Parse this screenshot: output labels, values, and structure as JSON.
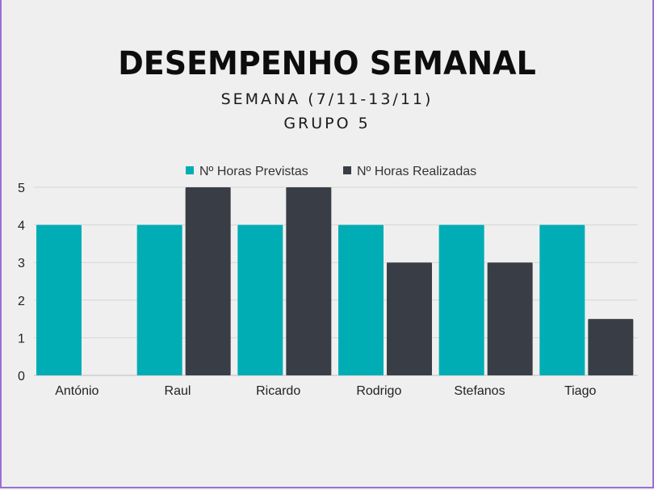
{
  "chart_data": {
    "type": "bar",
    "title": "DESEMPENHO SEMANAL",
    "subtitle_lines": [
      "SEMANA (7/11-13/11)",
      "GRUPO 5"
    ],
    "categories": [
      "António",
      "Raul",
      "Ricardo",
      "Rodrigo",
      "Stefanos",
      "Tiago"
    ],
    "series": [
      {
        "name": "Nº Horas Previstas",
        "values": [
          4,
          4,
          4,
          4,
          4,
          4
        ],
        "color": "#00adb5"
      },
      {
        "name": "Nº Horas Realizadas",
        "values": [
          0,
          5,
          5,
          3,
          3,
          1.5
        ],
        "color": "#393e46"
      }
    ],
    "ylim": [
      0,
      5
    ],
    "yticks": [
      0,
      1,
      2,
      3,
      4,
      5
    ],
    "grid": true,
    "legend": "top-center",
    "xlabel": "",
    "ylabel": ""
  }
}
